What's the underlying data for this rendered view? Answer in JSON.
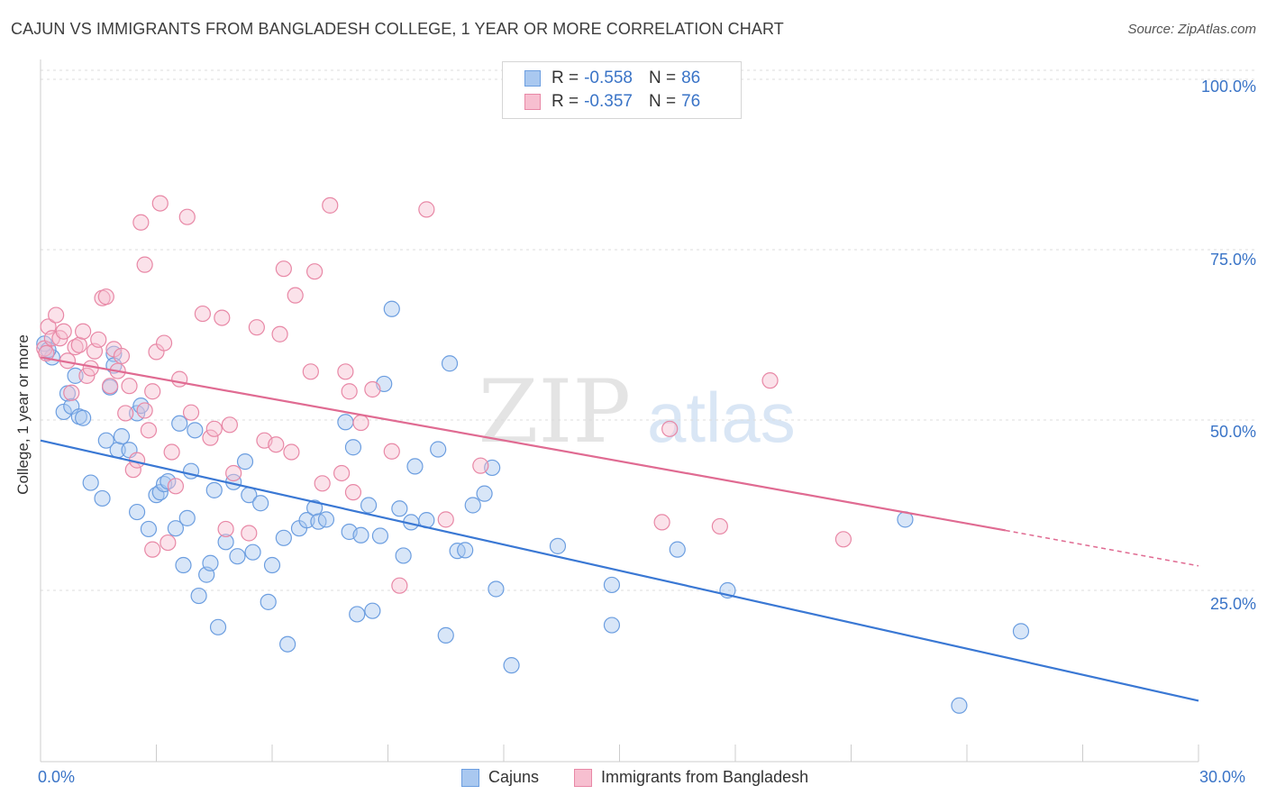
{
  "header": {
    "title": "CAJUN VS IMMIGRANTS FROM BANGLADESH COLLEGE, 1 YEAR OR MORE CORRELATION CHART",
    "source": "Source: ZipAtlas.com"
  },
  "watermark": {
    "zip": "ZIP",
    "atlas": "atlas"
  },
  "legend": {
    "rows": [
      {
        "label": "R = ",
        "r": "-0.558",
        "n_label": "N = ",
        "n": "86",
        "color": "#a9c8f0",
        "border": "#6c9ee0"
      },
      {
        "label": "R = ",
        "r": "-0.357",
        "n_label": "N = ",
        "n": "76",
        "color": "#f7bfd0",
        "border": "#e888a6"
      }
    ]
  },
  "bottom_legend": {
    "cajuns": "Cajuns",
    "bangladesh": "Immigrants from Bangladesh"
  },
  "axes": {
    "ylabel": "College, 1 year or more",
    "x_min_label": "0.0%",
    "x_max_label": "30.0%",
    "y_tick_labels": [
      "100.0%",
      "75.0%",
      "50.0%",
      "25.0%"
    ]
  },
  "chart_data": {
    "type": "scatter",
    "title": "CAJUN VS IMMIGRANTS FROM BANGLADESH COLLEGE, 1 YEAR OR MORE CORRELATION CHART",
    "xlabel": "",
    "ylabel": "College, 1 year or more",
    "xlim": [
      0,
      30
    ],
    "ylim": [
      0,
      105
    ],
    "x_ticks": [
      0,
      3,
      6,
      9,
      12,
      15,
      18,
      21,
      24,
      27,
      30
    ],
    "y_ticks": [
      100,
      75,
      50,
      25
    ],
    "grid": true,
    "legend_position": "top-center",
    "series": [
      {
        "name": "Cajuns",
        "color": "#6c9ee0",
        "fill": "#a9c8f0",
        "line_color": "#3a78d4",
        "r": "-0.558",
        "n": "86",
        "trend": {
          "x": [
            0,
            30
          ],
          "y": [
            47.0,
            8.8
          ]
        },
        "points": [
          [
            0.1,
            61.2
          ],
          [
            0.3,
            59.2
          ],
          [
            0.6,
            51.2
          ],
          [
            0.7,
            53.9
          ],
          [
            0.8,
            52.0
          ],
          [
            0.9,
            56.5
          ],
          [
            1.0,
            50.5
          ],
          [
            1.1,
            50.3
          ],
          [
            1.3,
            40.8
          ],
          [
            1.6,
            38.5
          ],
          [
            1.7,
            47.0
          ],
          [
            1.8,
            54.8
          ],
          [
            1.9,
            59.7
          ],
          [
            1.9,
            58.0
          ],
          [
            2.0,
            45.6
          ],
          [
            2.1,
            47.6
          ],
          [
            2.3,
            45.6
          ],
          [
            2.5,
            51.0
          ],
          [
            2.5,
            36.5
          ],
          [
            2.6,
            52.1
          ],
          [
            2.8,
            34.0
          ],
          [
            3.0,
            39.0
          ],
          [
            3.1,
            39.4
          ],
          [
            3.2,
            40.6
          ],
          [
            3.3,
            41.0
          ],
          [
            3.5,
            34.1
          ],
          [
            3.6,
            49.5
          ],
          [
            3.7,
            28.7
          ],
          [
            3.8,
            35.6
          ],
          [
            3.9,
            42.5
          ],
          [
            4.0,
            48.5
          ],
          [
            4.1,
            24.2
          ],
          [
            4.3,
            27.3
          ],
          [
            4.4,
            29.0
          ],
          [
            4.5,
            39.7
          ],
          [
            4.6,
            19.6
          ],
          [
            4.8,
            32.1
          ],
          [
            5.0,
            40.9
          ],
          [
            5.1,
            30.0
          ],
          [
            5.3,
            43.9
          ],
          [
            5.4,
            39.0
          ],
          [
            5.5,
            30.6
          ],
          [
            5.7,
            37.8
          ],
          [
            5.9,
            23.3
          ],
          [
            6.0,
            28.7
          ],
          [
            6.3,
            32.7
          ],
          [
            6.4,
            17.1
          ],
          [
            6.7,
            34.1
          ],
          [
            6.9,
            35.3
          ],
          [
            7.1,
            37.1
          ],
          [
            7.2,
            35.1
          ],
          [
            7.4,
            35.4
          ],
          [
            7.9,
            49.7
          ],
          [
            8.0,
            33.6
          ],
          [
            8.1,
            46.0
          ],
          [
            8.2,
            21.5
          ],
          [
            8.3,
            33.1
          ],
          [
            8.5,
            37.5
          ],
          [
            8.6,
            22.0
          ],
          [
            8.8,
            33.0
          ],
          [
            8.9,
            55.3
          ],
          [
            9.1,
            66.3
          ],
          [
            9.3,
            37.0
          ],
          [
            9.4,
            30.1
          ],
          [
            9.6,
            35.0
          ],
          [
            9.7,
            43.2
          ],
          [
            10.0,
            35.3
          ],
          [
            10.3,
            45.7
          ],
          [
            10.5,
            18.4
          ],
          [
            10.6,
            58.3
          ],
          [
            10.8,
            30.8
          ],
          [
            11.0,
            30.9
          ],
          [
            11.2,
            37.5
          ],
          [
            11.5,
            39.2
          ],
          [
            11.7,
            43.0
          ],
          [
            11.8,
            25.2
          ],
          [
            12.2,
            14.0
          ],
          [
            13.4,
            31.5
          ],
          [
            14.8,
            25.8
          ],
          [
            14.8,
            19.9
          ],
          [
            16.5,
            31.0
          ],
          [
            17.8,
            25.0
          ],
          [
            22.4,
            35.4
          ],
          [
            25.4,
            19.0
          ],
          [
            23.8,
            8.1
          ],
          [
            0.2,
            60.3
          ]
        ]
      },
      {
        "name": "Immigrants from Bangladesh",
        "color": "#e888a6",
        "fill": "#f7bfd0",
        "line_color": "#e06b92",
        "r": "-0.357",
        "n": "76",
        "trend": {
          "x": [
            0,
            25
          ],
          "y": [
            59.2,
            33.8
          ]
        },
        "trend_dashed": {
          "x": [
            25,
            30
          ],
          "y": [
            33.8,
            28.6
          ]
        },
        "points": [
          [
            0.1,
            60.5
          ],
          [
            0.2,
            63.7
          ],
          [
            0.3,
            62.0
          ],
          [
            0.4,
            65.4
          ],
          [
            0.5,
            62.0
          ],
          [
            0.6,
            63.0
          ],
          [
            0.7,
            58.7
          ],
          [
            0.8,
            54.0
          ],
          [
            0.9,
            60.7
          ],
          [
            1.0,
            61.0
          ],
          [
            1.1,
            63.0
          ],
          [
            1.2,
            56.5
          ],
          [
            1.3,
            57.6
          ],
          [
            1.4,
            60.1
          ],
          [
            1.6,
            67.9
          ],
          [
            1.7,
            68.1
          ],
          [
            1.8,
            55.0
          ],
          [
            1.9,
            60.4
          ],
          [
            2.0,
            57.2
          ],
          [
            2.1,
            59.4
          ],
          [
            2.2,
            51.0
          ],
          [
            2.3,
            55.0
          ],
          [
            2.4,
            42.7
          ],
          [
            2.5,
            44.1
          ],
          [
            2.6,
            79.0
          ],
          [
            2.7,
            51.4
          ],
          [
            2.7,
            72.8
          ],
          [
            2.8,
            48.5
          ],
          [
            2.9,
            31.0
          ],
          [
            3.0,
            60.0
          ],
          [
            3.1,
            81.8
          ],
          [
            3.2,
            61.3
          ],
          [
            3.3,
            32.0
          ],
          [
            3.4,
            45.3
          ],
          [
            3.5,
            40.3
          ],
          [
            3.6,
            56.0
          ],
          [
            3.8,
            79.8
          ],
          [
            3.9,
            51.1
          ],
          [
            4.2,
            65.6
          ],
          [
            4.4,
            47.4
          ],
          [
            4.5,
            48.7
          ],
          [
            4.7,
            65.0
          ],
          [
            4.8,
            34.0
          ],
          [
            4.9,
            49.3
          ],
          [
            5.0,
            42.2
          ],
          [
            5.4,
            33.4
          ],
          [
            5.6,
            63.6
          ],
          [
            5.8,
            47.0
          ],
          [
            6.1,
            46.4
          ],
          [
            6.2,
            62.6
          ],
          [
            6.3,
            72.2
          ],
          [
            6.5,
            45.3
          ],
          [
            6.6,
            68.3
          ],
          [
            7.0,
            57.1
          ],
          [
            7.1,
            71.8
          ],
          [
            7.3,
            40.7
          ],
          [
            7.5,
            81.5
          ],
          [
            7.8,
            42.2
          ],
          [
            7.9,
            57.1
          ],
          [
            8.0,
            54.2
          ],
          [
            8.1,
            39.4
          ],
          [
            8.3,
            49.6
          ],
          [
            8.6,
            54.5
          ],
          [
            9.1,
            45.4
          ],
          [
            9.3,
            25.7
          ],
          [
            10.0,
            80.9
          ],
          [
            10.5,
            35.4
          ],
          [
            11.4,
            43.3
          ],
          [
            16.1,
            35.0
          ],
          [
            16.3,
            48.7
          ],
          [
            17.6,
            34.4
          ],
          [
            18.9,
            55.8
          ],
          [
            20.8,
            32.5
          ],
          [
            0.15,
            59.8
          ],
          [
            1.5,
            61.8
          ],
          [
            2.9,
            54.2
          ]
        ]
      }
    ]
  }
}
